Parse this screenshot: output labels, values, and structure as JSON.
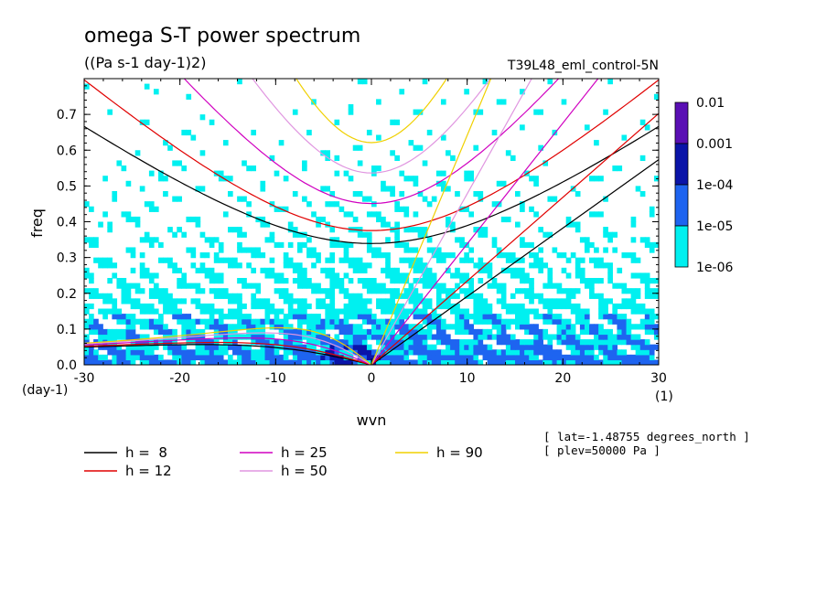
{
  "header": {
    "title": "omega S-T power spectrum",
    "units": "((Pa s-1 day-1)2)",
    "dataset": "T39L48_eml_control-5N"
  },
  "chart_data": {
    "type": "heatmap",
    "xlabel": "wvn",
    "ylabel": "freq",
    "x_unit_label": "(1)",
    "y_unit_label": "(day-1)",
    "xlim": [
      -30,
      30
    ],
    "ylim": [
      0,
      0.8
    ],
    "x_ticks": [
      -30,
      -20,
      -10,
      0,
      10,
      20,
      30
    ],
    "x_tick_labels": [
      "-30",
      "-20",
      "-10",
      "0",
      "10",
      "20",
      "30"
    ],
    "y_ticks": [
      0,
      0.1,
      0.2,
      0.3,
      0.4,
      0.5,
      0.6,
      0.7
    ],
    "y_tick_labels": [
      "0.0",
      "0.1",
      "0.2",
      "0.3",
      "0.4",
      "0.5",
      "0.6",
      "0.7"
    ],
    "colorbar": {
      "levels": [
        "0.01",
        "0.001",
        "1e-04",
        "1e-05",
        "1e-06"
      ],
      "colors": [
        "#5a0fb4",
        "#0a14a8",
        "#1e64f0",
        "#00f0f0"
      ]
    },
    "dispersion_curves": [
      {
        "label": "h =  8",
        "h": 8,
        "color": "#000000"
      },
      {
        "label": "h = 12",
        "h": 12,
        "color": "#e00000"
      },
      {
        "label": "h = 25",
        "h": 25,
        "color": "#d000c0"
      },
      {
        "label": "h = 50",
        "h": 50,
        "color": "#e096e0"
      },
      {
        "label": "h = 90",
        "h": 90,
        "color": "#f0d000"
      }
    ]
  },
  "info": {
    "lat": "[ lat=-1.48755 degrees_north ]",
    "plev": "[ plev=50000 Pa ]"
  }
}
